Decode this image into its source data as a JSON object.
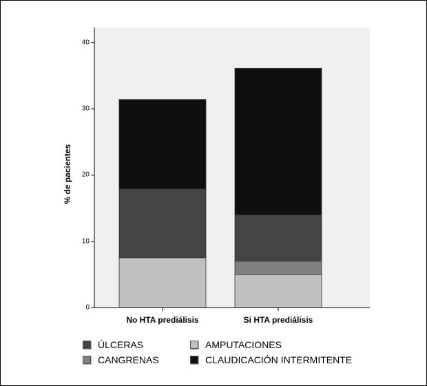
{
  "chart_data": {
    "type": "bar",
    "stacked": true,
    "ylabel": "% de pacientes",
    "xlabel": "",
    "categories": [
      "No HTA prediálisis",
      "Si HTA prediálisis"
    ],
    "yticks": [
      0,
      10,
      20,
      30,
      40
    ],
    "ylim": [
      0,
      42
    ],
    "grid": false,
    "legend_position": "bottom",
    "series": [
      {
        "name": "AMPUTACIONES",
        "values": [
          7.5,
          5.0
        ],
        "color": "#c0c0c0"
      },
      {
        "name": "CANGRENAS",
        "values": [
          0.0,
          2.0
        ],
        "color": "#808080"
      },
      {
        "name": "ÚLCERAS",
        "values": [
          10.4,
          7.0
        ],
        "color": "#444444"
      },
      {
        "name": "CLAUDICACIÓN INTERMITENTE",
        "values": [
          13.5,
          22.1
        ],
        "color": "#0f0f0f"
      }
    ],
    "legend": [
      {
        "label": "ÚLCERAS",
        "color": "#444444"
      },
      {
        "label": "AMPUTACIONES",
        "color": "#c0c0c0"
      },
      {
        "label": "CANGRENAS",
        "color": "#808080"
      },
      {
        "label": "CLAUDICACIÓN INTERMITENTE",
        "color": "#0f0f0f"
      }
    ],
    "plot_background": "#f0f0f0"
  }
}
